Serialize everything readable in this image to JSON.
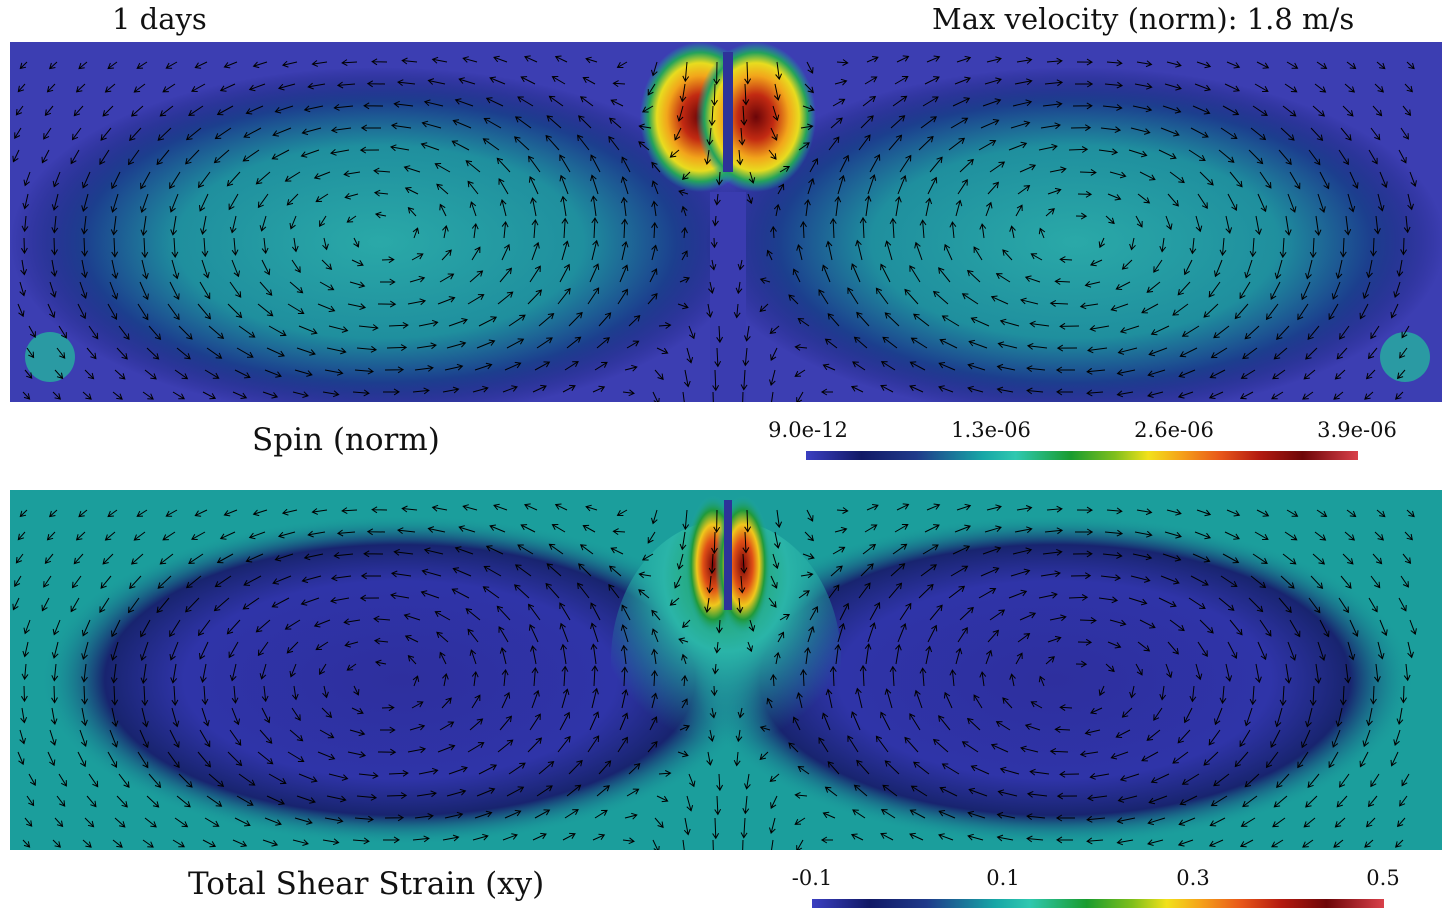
{
  "header": {
    "time_label": "1 days",
    "max_velocity_label": "Max velocity (norm): 1.8 m/s"
  },
  "panels": [
    {
      "title": "Spin (norm)",
      "colorbar_ticks": [
        "9.0e-12",
        "1.3e-06",
        "2.6e-06",
        "3.9e-06"
      ]
    },
    {
      "title": "Total Shear Strain (xy)",
      "colorbar_ticks": [
        "-0.1",
        "0.1",
        "0.3",
        "0.5"
      ]
    }
  ],
  "colors": {
    "low": "#3b3fc1",
    "dark": "#111966",
    "teal": "#17a6a6",
    "green": "#199c2f",
    "yellow": "#f2e11b",
    "orange": "#f5a11a",
    "red": "#b41b10",
    "arrow": "#000000"
  }
}
